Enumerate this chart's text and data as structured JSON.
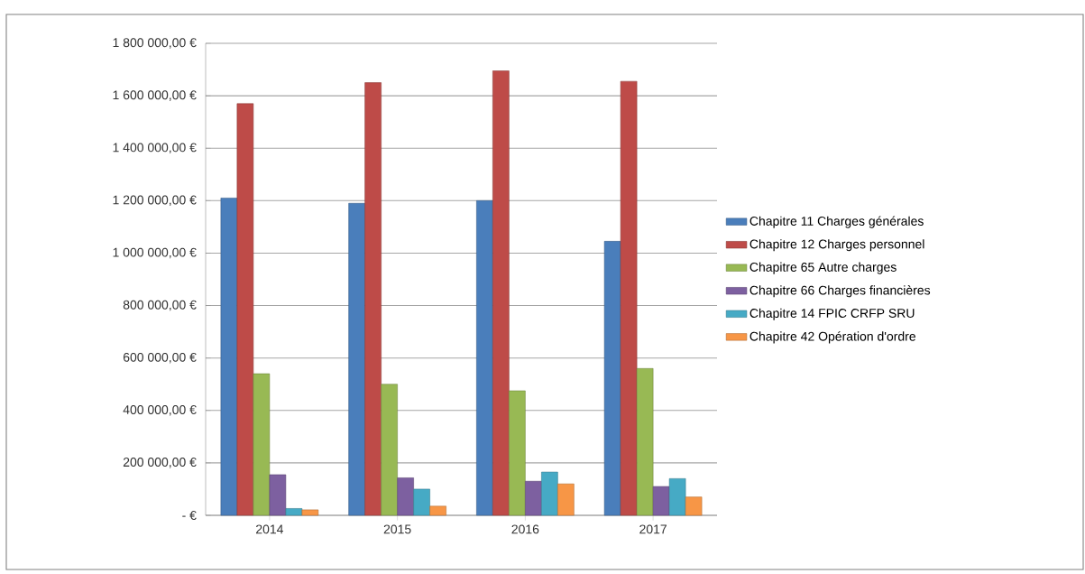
{
  "chart_data": {
    "type": "bar",
    "categories": [
      "2014",
      "2015",
      "2016",
      "2017"
    ],
    "series": [
      {
        "name": "Chapitre 11 Charges générales",
        "color": "#4a7ebb",
        "values": [
          1210000,
          1190000,
          1200000,
          1045000
        ]
      },
      {
        "name": "Chapitre 12 Charges personnel",
        "color": "#be4b48",
        "values": [
          1570000,
          1650000,
          1695000,
          1655000
        ]
      },
      {
        "name": "Chapitre 65 Autre charges",
        "color": "#98b954",
        "values": [
          540000,
          500000,
          475000,
          560000
        ]
      },
      {
        "name": "Chapitre 66 Charges financières",
        "color": "#7d60a0",
        "values": [
          155000,
          143000,
          130000,
          110000
        ]
      },
      {
        "name": "Chapitre 14 FPIC CRFP SRU",
        "color": "#46aac5",
        "values": [
          26000,
          100000,
          165000,
          140000
        ]
      },
      {
        "name": "Chapitre 42 Opération d'ordre",
        "color": "#f79646",
        "values": [
          21000,
          35000,
          120000,
          70000
        ]
      }
    ],
    "ylim": [
      0,
      1800000
    ],
    "yticks": [
      {
        "value": 0,
        "label": "-   €"
      },
      {
        "value": 200000,
        "label": "200 000,00 €"
      },
      {
        "value": 400000,
        "label": "400 000,00 €"
      },
      {
        "value": 600000,
        "label": "600 000,00 €"
      },
      {
        "value": 800000,
        "label": "800 000,00 €"
      },
      {
        "value": 1000000,
        "label": "1 000 000,00 €"
      },
      {
        "value": 1200000,
        "label": "1 200 000,00 €"
      },
      {
        "value": 1400000,
        "label": "1 400 000,00 €"
      },
      {
        "value": 1600000,
        "label": "1 600 000,00 €"
      },
      {
        "value": 1800000,
        "label": "1 800 000,00 €"
      }
    ],
    "grid": "y",
    "legend": "right"
  }
}
